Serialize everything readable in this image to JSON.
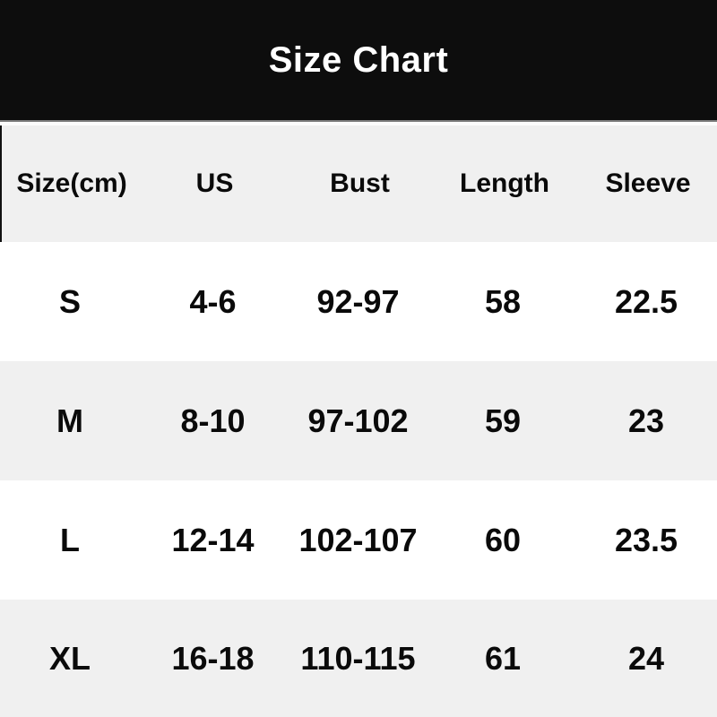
{
  "title": "Size Chart",
  "chart_data": {
    "type": "table",
    "title": "Size Chart",
    "columns": [
      "Size(cm)",
      "US",
      "Bust",
      "Length",
      "Sleeve"
    ],
    "rows": [
      [
        "S",
        "4-6",
        "92-97",
        "58",
        "22.5"
      ],
      [
        "M",
        "8-10",
        "97-102",
        "59",
        "23"
      ],
      [
        "L",
        "12-14",
        "102-107",
        "60",
        "23.5"
      ],
      [
        "XL",
        "16-18",
        "110-115",
        "61",
        "24"
      ]
    ]
  },
  "colors": {
    "banner_bg": "#0d0d0d",
    "banner_text": "#ffffff",
    "row_alt_bg": "#f0f0f0",
    "row_bg": "#ffffff",
    "text": "#0a0a0a",
    "divider_dark": "#7d7d7d"
  }
}
